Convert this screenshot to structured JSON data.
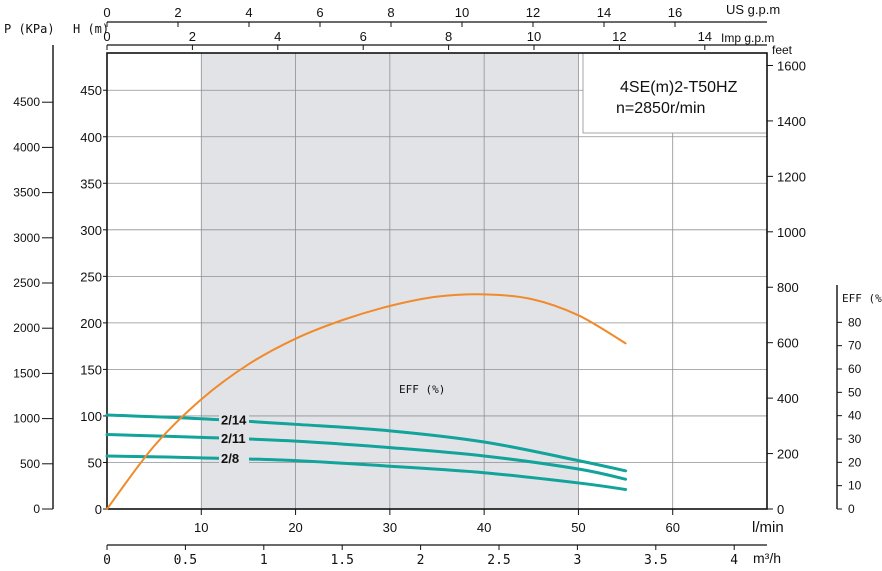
{
  "chart_data": {
    "type": "line",
    "model": "4SE(m)2-T50HZ",
    "speed": "n=2850r/min",
    "axes": {
      "q_lmin": {
        "label": "l/min",
        "ticks": [
          10,
          20,
          30,
          40,
          50,
          60
        ],
        "range": [
          0,
          70
        ]
      },
      "q_m3h": {
        "label": "m³/h",
        "ticks": [
          "0",
          "0.5",
          "1",
          "1.5",
          "2",
          "2.5",
          "3",
          "3.5",
          "4"
        ]
      },
      "us_gpm": {
        "label": "US g.p.m",
        "ticks": [
          0,
          2,
          4,
          6,
          8,
          10,
          12,
          14,
          16
        ]
      },
      "imp_gpm": {
        "label": "Imp g.p.m",
        "ticks": [
          0,
          2,
          4,
          6,
          8,
          10,
          12,
          14
        ]
      },
      "pressure": {
        "label": "P (KPa)",
        "ticks": [
          0,
          500,
          1000,
          1500,
          2000,
          2500,
          3000,
          3500,
          4000,
          4500
        ]
      },
      "head_m": {
        "label": "H (m)",
        "ticks": [
          0,
          50,
          100,
          150,
          200,
          250,
          300,
          350,
          400,
          450
        ],
        "range": [
          0,
          490
        ]
      },
      "head_ft": {
        "label": "feet",
        "ticks": [
          0,
          200,
          400,
          600,
          800,
          1000,
          1200,
          1400,
          1600
        ]
      },
      "eff": {
        "label": "EFF (%)",
        "ticks": [
          "0",
          "10",
          "20",
          "30",
          "40",
          "50",
          "60",
          "70",
          "80"
        ]
      }
    },
    "shaded_band_lmin": [
      10,
      50
    ],
    "series": [
      {
        "name": "2/14",
        "x": [
          0,
          10,
          20,
          30,
          40,
          50,
          55
        ],
        "y": [
          101,
          97,
          91,
          84,
          72,
          52,
          41
        ]
      },
      {
        "name": "2/11",
        "x": [
          0,
          10,
          20,
          30,
          40,
          50,
          55
        ],
        "y": [
          80,
          77,
          73,
          66,
          57,
          43,
          32
        ]
      },
      {
        "name": "2/8",
        "x": [
          0,
          10,
          20,
          30,
          40,
          50,
          55
        ],
        "y": [
          57,
          55,
          52,
          46,
          39,
          28,
          21
        ]
      }
    ],
    "efficiency": {
      "name": "EFF (%)",
      "x": [
        0,
        5,
        10,
        15,
        20,
        25,
        30,
        35,
        40,
        45,
        50,
        55
      ],
      "y": [
        0,
        27,
        47,
        62,
        73,
        81,
        87,
        91,
        92,
        90,
        83,
        71
      ]
    }
  },
  "colors": {
    "curve": "#12a39b",
    "eff": "#f08a2a",
    "band": "#e2e3e7",
    "grid": "#8f9095",
    "axis": "#111111"
  }
}
